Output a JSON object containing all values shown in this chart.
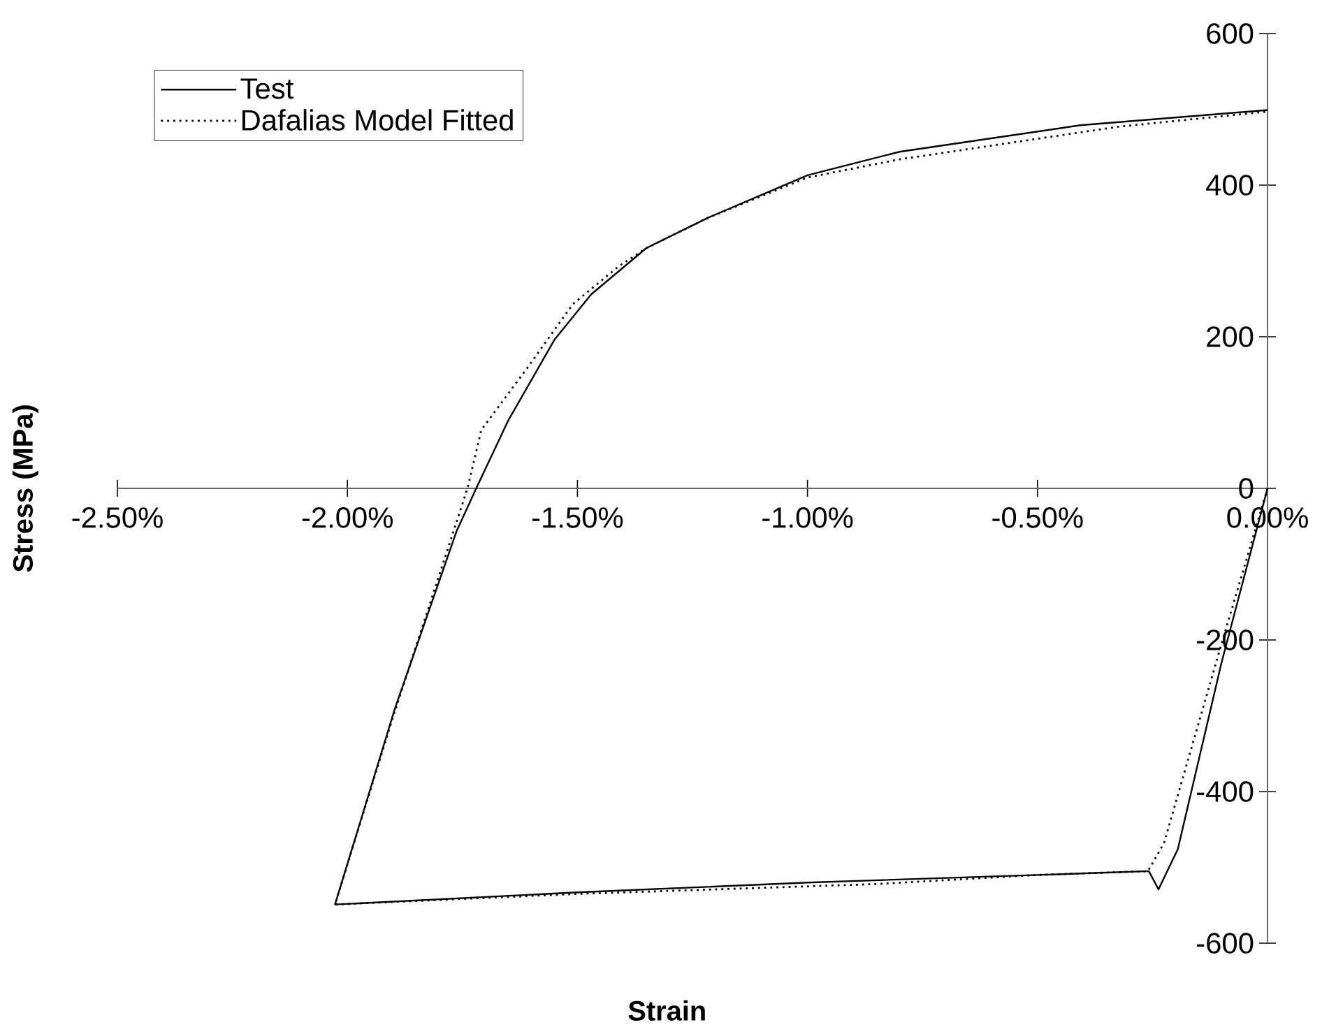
{
  "chart_data": {
    "type": "line",
    "xlabel": "Strain",
    "ylabel": "Stress (MPa)",
    "xlim": [
      -2.5,
      0
    ],
    "ylim": [
      -600,
      600
    ],
    "xticks": [
      {
        "value": -2.5,
        "label": "-2.50%"
      },
      {
        "value": -2.0,
        "label": "-2.00%"
      },
      {
        "value": -1.5,
        "label": "-1.50%"
      },
      {
        "value": -1.0,
        "label": "-1.00%"
      },
      {
        "value": -0.5,
        "label": "-0.50%"
      },
      {
        "value": 0,
        "label": "0.00%"
      }
    ],
    "yticks": [
      -600,
      -400,
      -200,
      0,
      200,
      400,
      600
    ],
    "grid": false,
    "legend": "top left",
    "marker": "none",
    "series": [
      {
        "name": "Test",
        "color": "#000000",
        "line_style": "solid",
        "x": [
          0,
          -0.1,
          -0.195,
          -0.237,
          -0.258,
          -0.5,
          -1.0,
          -1.5,
          -2.027,
          -1.897,
          -1.763,
          -1.72,
          -1.65,
          -1.55,
          -1.47,
          -1.35,
          -1.216,
          -1.0,
          -0.8,
          -0.407,
          0
        ],
        "values": [
          0,
          -230,
          -476,
          -529,
          -505,
          -510,
          -520,
          -533,
          -549,
          -291,
          -57,
          0,
          90,
          196,
          256,
          317,
          357,
          413,
          444,
          479,
          499
        ]
      },
      {
        "name": "Dafalias Model Fitted",
        "color": "#000000",
        "line_style": "dotted",
        "x": [
          0,
          -0.1,
          -0.225,
          -0.26,
          -0.5,
          -0.85,
          -1.5,
          -2.027,
          -1.9,
          -1.739,
          -1.709,
          -1.61,
          -1.51,
          -1.41,
          -1.35,
          -1.216,
          -1.0,
          -0.8,
          -0.325,
          0
        ],
        "values": [
          0,
          -205,
          -468,
          -505,
          -510,
          -522,
          -535,
          -549,
          -300,
          0,
          77,
          158,
          243,
          293,
          317,
          357,
          410,
          434,
          477,
          497
        ]
      }
    ]
  }
}
